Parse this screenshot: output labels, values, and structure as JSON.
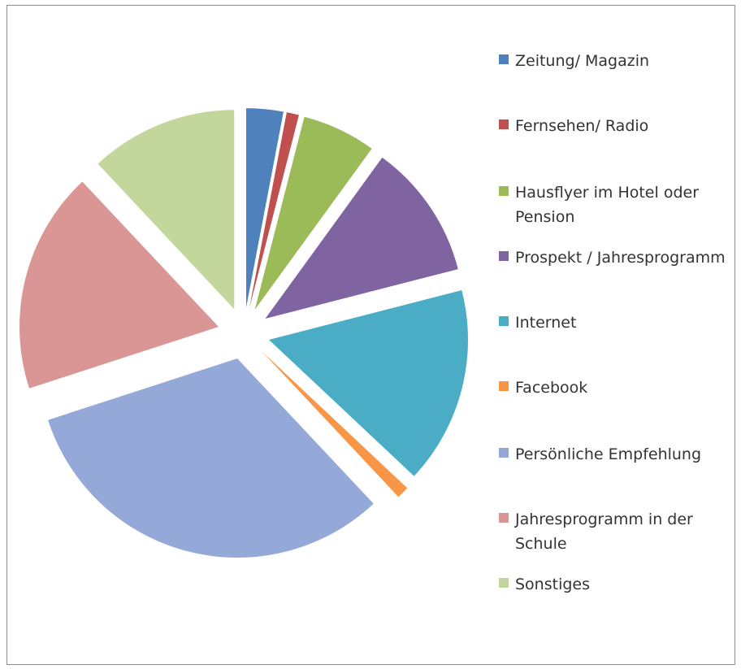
{
  "chart_data": {
    "type": "pie",
    "title": "",
    "exploded": true,
    "legend_position": "right",
    "categories": [
      "Zeitung/ Magazin",
      "Fernsehen/ Radio",
      "Hausflyer im Hotel oder Pension",
      "Prospekt / Jahresprogramm",
      "Internet",
      "Facebook",
      "Persönliche Empfehlung",
      "Jahresprogramm in der Schule",
      "Sonstiges"
    ],
    "values": [
      3,
      1,
      6,
      11,
      16,
      1,
      32,
      18,
      12
    ],
    "colors": [
      "#4f81bd",
      "#c0504d",
      "#9bbb59",
      "#8064a2",
      "#4bacc6",
      "#f79646",
      "#94a9d8",
      "#d99694",
      "#c3d69b"
    ]
  }
}
